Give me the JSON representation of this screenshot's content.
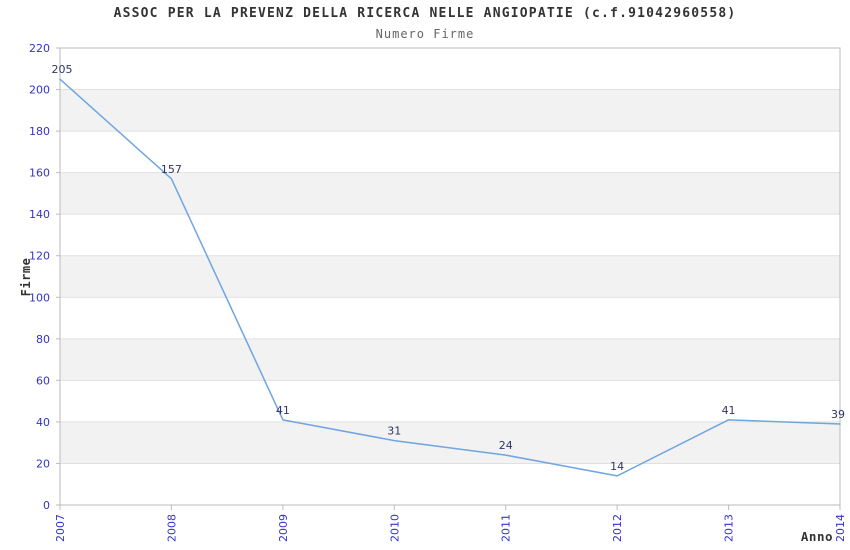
{
  "chart_data": {
    "type": "line",
    "title": "ASSOC PER LA PREVENZ DELLA RICERCA NELLE ANGIOPATIE (c.f.91042960558)",
    "subtitle": "Numero Firme",
    "xlabel": "Anno",
    "ylabel": "Firme",
    "categories": [
      "2007",
      "2008",
      "2009",
      "2010",
      "2011",
      "2012",
      "2013",
      "2014"
    ],
    "values": [
      205,
      157,
      41,
      31,
      24,
      14,
      41,
      39
    ],
    "ylim": [
      0,
      220
    ],
    "y_tick_step": 20,
    "y_tick_labels": [
      "0",
      "20",
      "40",
      "60",
      "80",
      "100",
      "120",
      "140",
      "160",
      "180",
      "200",
      "220"
    ],
    "grid": "horizontal alternating bands with gridlines every 20",
    "legend_position": "none",
    "x_tick_rotation": -90
  },
  "colors": {
    "line": "#6fa5e0",
    "tick_label": "#3333cc",
    "data_label": "#333366",
    "title": "#333333",
    "subtitle": "#666666",
    "axis_title": "#333333",
    "band_gray": "#f2f2f2",
    "band_white": "#ffffff",
    "gridline": "#e0e0e0",
    "plot_border": "#bbbbbb",
    "background": "#ffffff"
  }
}
